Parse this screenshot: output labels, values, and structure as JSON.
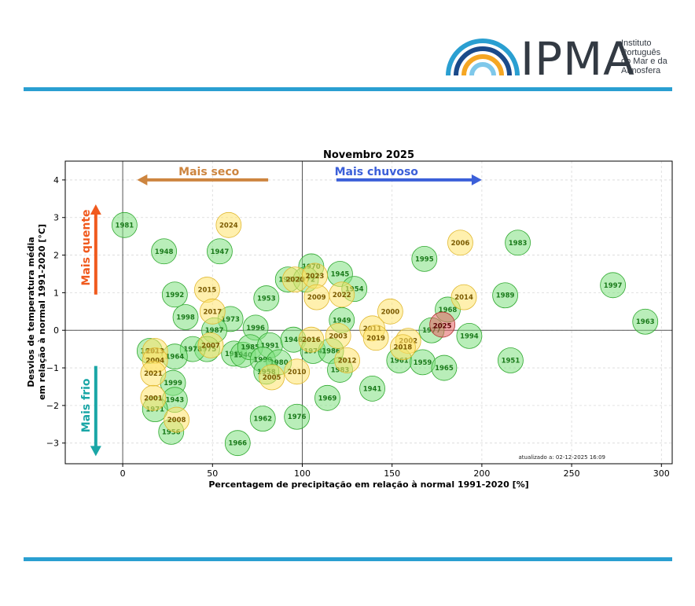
{
  "logo": {
    "name": "IPMA",
    "subtitle_lines": [
      "Instituto",
      "Português",
      "do Mar e da",
      "Atmosfera"
    ]
  },
  "colors": {
    "rule": "#2a9fd1",
    "green_fill": "#7fe07f",
    "green_edge": "#2ea82e",
    "green_text": "#1a7a1a",
    "yellow_fill": "#ffe36b",
    "yellow_edge": "#e0b830",
    "yellow_text": "#7a5a00",
    "current_fill": "#e36060",
    "current_edge": "#b03030",
    "drier": "#cd853f",
    "wetter": "#3b5fd9",
    "warmer": "#f05a1e",
    "colder": "#1aa6a6"
  },
  "annotations": {
    "drier": "Mais seco",
    "wetter": "Mais chuvoso",
    "warmer": "Mais quente",
    "colder": "Mais frio",
    "updated": "atualizado a: 02-12-2025 16:09"
  },
  "chart_data": {
    "type": "scatter",
    "title": "Novembro 2025",
    "xlabel": "Percentagem de precipitação em relação à normal 1991-2020 [%]",
    "ylabel": [
      "Desvios de temperatura média",
      "em relação à normal 1991-2020 [°C]"
    ],
    "xlim": [
      -32,
      306
    ],
    "ylim": [
      -3.55,
      4.5
    ],
    "xticks": [
      0,
      50,
      100,
      150,
      200,
      250,
      300
    ],
    "yticks": [
      -3,
      -2,
      -1,
      0,
      1,
      2,
      3,
      4
    ],
    "grid": true,
    "reference_lines": {
      "x": 100,
      "y": 0
    },
    "current_year": "2025",
    "points": [
      {
        "year": "1981",
        "x": 1,
        "y": 2.8,
        "g": "old"
      },
      {
        "year": "1948",
        "x": 23,
        "y": 2.1,
        "g": "old"
      },
      {
        "year": "1947",
        "x": 54,
        "y": 2.1,
        "g": "old"
      },
      {
        "year": "1992",
        "x": 29,
        "y": 0.95,
        "g": "old"
      },
      {
        "year": "1998",
        "x": 35,
        "y": 0.35,
        "g": "old"
      },
      {
        "year": "1973",
        "x": 60,
        "y": 0.3,
        "g": "old"
      },
      {
        "year": "1987",
        "x": 51,
        "y": 0.0,
        "g": "old"
      },
      {
        "year": "1975",
        "x": 47,
        "y": -0.5,
        "g": "old"
      },
      {
        "year": "1978",
        "x": 39,
        "y": -0.5,
        "g": "old"
      },
      {
        "year": "1964",
        "x": 29,
        "y": -0.7,
        "g": "old"
      },
      {
        "year": "1952",
        "x": 15,
        "y": -0.55,
        "g": "old"
      },
      {
        "year": "1999",
        "x": 28,
        "y": -1.4,
        "g": "old"
      },
      {
        "year": "1943",
        "x": 29,
        "y": -1.85,
        "g": "old"
      },
      {
        "year": "1971",
        "x": 18,
        "y": -2.1,
        "g": "old"
      },
      {
        "year": "1956",
        "x": 27,
        "y": -2.7,
        "g": "old"
      },
      {
        "year": "1966",
        "x": 64,
        "y": -3.0,
        "g": "old"
      },
      {
        "year": "1962",
        "x": 78,
        "y": -2.35,
        "g": "old"
      },
      {
        "year": "1976",
        "x": 97,
        "y": -2.3,
        "g": "old"
      },
      {
        "year": "1953",
        "x": 80,
        "y": 0.85,
        "g": "old"
      },
      {
        "year": "1996",
        "x": 74,
        "y": 0.07,
        "g": "old"
      },
      {
        "year": "1984",
        "x": 62,
        "y": -0.62,
        "g": "old"
      },
      {
        "year": "1940",
        "x": 67,
        "y": -0.65,
        "g": "old"
      },
      {
        "year": "1985",
        "x": 71,
        "y": -0.45,
        "g": "old"
      },
      {
        "year": "1991",
        "x": 82,
        "y": -0.4,
        "g": "old"
      },
      {
        "year": "1990",
        "x": 78,
        "y": -0.78,
        "g": "old"
      },
      {
        "year": "1980",
        "x": 87,
        "y": -0.85,
        "g": "old"
      },
      {
        "year": "1958",
        "x": 80,
        "y": -1.1,
        "g": "old"
      },
      {
        "year": "1946",
        "x": 95,
        "y": -0.25,
        "g": "old"
      },
      {
        "year": "1970",
        "x": 105,
        "y": 1.7,
        "g": "old"
      },
      {
        "year": "1967",
        "x": 92,
        "y": 1.35,
        "g": "old"
      },
      {
        "year": "1972",
        "x": 102,
        "y": 1.35,
        "g": "old"
      },
      {
        "year": "1945",
        "x": 121,
        "y": 1.5,
        "g": "old"
      },
      {
        "year": "1954",
        "x": 129,
        "y": 1.1,
        "g": "old"
      },
      {
        "year": "1949",
        "x": 122,
        "y": 0.27,
        "g": "old"
      },
      {
        "year": "1974",
        "x": 106,
        "y": -0.55,
        "g": "old"
      },
      {
        "year": "1986",
        "x": 116,
        "y": -0.55,
        "g": "old"
      },
      {
        "year": "1983",
        "x": 121,
        "y": -1.05,
        "g": "old"
      },
      {
        "year": "1969",
        "x": 114,
        "y": -1.8,
        "g": "old"
      },
      {
        "year": "1941",
        "x": 139,
        "y": -1.55,
        "g": "old"
      },
      {
        "year": "1961",
        "x": 154,
        "y": -0.8,
        "g": "old"
      },
      {
        "year": "1959",
        "x": 167,
        "y": -0.85,
        "g": "old"
      },
      {
        "year": "1965",
        "x": 179,
        "y": -1.0,
        "g": "old"
      },
      {
        "year": "1995",
        "x": 168,
        "y": 1.9,
        "g": "old"
      },
      {
        "year": "1968",
        "x": 181,
        "y": 0.55,
        "g": "old"
      },
      {
        "year": "1977",
        "x": 172,
        "y": 0.0,
        "g": "old"
      },
      {
        "year": "1994",
        "x": 193,
        "y": -0.15,
        "g": "old"
      },
      {
        "year": "1989",
        "x": 213,
        "y": 0.93,
        "g": "old"
      },
      {
        "year": "1983",
        "x": 220,
        "y": 2.33,
        "g": "old"
      },
      {
        "year": "1951",
        "x": 216,
        "y": -0.8,
        "g": "old"
      },
      {
        "year": "1997",
        "x": 273,
        "y": 1.2,
        "g": "old"
      },
      {
        "year": "1963",
        "x": 291,
        "y": 0.23,
        "g": "old"
      },
      {
        "year": "2024",
        "x": 59,
        "y": 2.8,
        "g": "recent"
      },
      {
        "year": "2015",
        "x": 47,
        "y": 1.08,
        "g": "recent"
      },
      {
        "year": "2017",
        "x": 50,
        "y": 0.5,
        "g": "recent"
      },
      {
        "year": "2007",
        "x": 49,
        "y": -0.4,
        "g": "recent"
      },
      {
        "year": "2013",
        "x": 18,
        "y": -0.55,
        "g": "recent"
      },
      {
        "year": "2004",
        "x": 18,
        "y": -0.8,
        "g": "recent"
      },
      {
        "year": "2021",
        "x": 17,
        "y": -1.15,
        "g": "recent"
      },
      {
        "year": "2001",
        "x": 17,
        "y": -1.8,
        "g": "recent"
      },
      {
        "year": "2008",
        "x": 30,
        "y": -2.38,
        "g": "recent"
      },
      {
        "year": "2005",
        "x": 83,
        "y": -1.25,
        "g": "recent"
      },
      {
        "year": "2010",
        "x": 97,
        "y": -1.1,
        "g": "recent"
      },
      {
        "year": "2020",
        "x": 96,
        "y": 1.35,
        "g": "recent"
      },
      {
        "year": "2023",
        "x": 107,
        "y": 1.45,
        "g": "recent"
      },
      {
        "year": "2009",
        "x": 108,
        "y": 0.88,
        "g": "recent"
      },
      {
        "year": "2022",
        "x": 122,
        "y": 0.95,
        "g": "recent"
      },
      {
        "year": "2016",
        "x": 105,
        "y": -0.25,
        "g": "recent"
      },
      {
        "year": "2003",
        "x": 120,
        "y": -0.15,
        "g": "recent"
      },
      {
        "year": "2012",
        "x": 125,
        "y": -0.8,
        "g": "recent"
      },
      {
        "year": "2000",
        "x": 149,
        "y": 0.5,
        "g": "recent"
      },
      {
        "year": "2011",
        "x": 139,
        "y": 0.05,
        "g": "recent"
      },
      {
        "year": "2019",
        "x": 141,
        "y": -0.2,
        "g": "recent"
      },
      {
        "year": "2002",
        "x": 159,
        "y": -0.28,
        "g": "recent"
      },
      {
        "year": "2018",
        "x": 156,
        "y": -0.45,
        "g": "recent"
      },
      {
        "year": "2014",
        "x": 190,
        "y": 0.88,
        "g": "recent"
      },
      {
        "year": "2006",
        "x": 188,
        "y": 2.33,
        "g": "recent"
      },
      {
        "year": "2025",
        "x": 178,
        "y": 0.15,
        "g": "current"
      }
    ]
  }
}
